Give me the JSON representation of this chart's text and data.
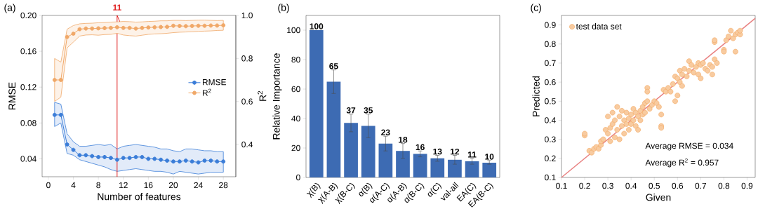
{
  "chart_data": [
    {
      "type": "line",
      "title": "(a)",
      "xlabel": "Number of features",
      "ylabel": "RMSE",
      "y2label": "R$^{2}$",
      "x": [
        1,
        2,
        3,
        4,
        5,
        6,
        7,
        8,
        9,
        10,
        11,
        12,
        13,
        14,
        15,
        16,
        17,
        18,
        19,
        20,
        21,
        22,
        23,
        24,
        25,
        26,
        27,
        28
      ],
      "xlim": [
        -1,
        30
      ],
      "xticks": [
        0,
        4,
        8,
        12,
        16,
        20,
        24,
        28
      ],
      "ylim": [
        0.02,
        0.2
      ],
      "yticks": [
        0.04,
        0.08,
        0.12,
        0.16,
        {
          "value": 0.2,
          "label": "0.20"
        }
      ],
      "y2lim": [
        0.25,
        1.0
      ],
      "y2ticks": [
        0.4,
        0.6,
        0.8,
        {
          "value": 1.0,
          "label": "1.0"
        }
      ],
      "marker": "circle",
      "legend": "right",
      "ref_lines": [
        {
          "axis": "x",
          "value": 11,
          "label": "11",
          "color": "#e02020"
        }
      ],
      "series": [
        {
          "name": "RMSE",
          "color": "#3b7dd8",
          "values": [
            0.089,
            0.089,
            0.056,
            0.05,
            0.044,
            0.044,
            0.043,
            0.042,
            0.042,
            0.041,
            0.039,
            0.041,
            0.041,
            0.042,
            0.042,
            0.04,
            0.04,
            0.039,
            0.038,
            0.037,
            0.037,
            0.038,
            0.037,
            0.036,
            0.038,
            0.038,
            0.037,
            0.037
          ],
          "lower": [
            0.076,
            0.08,
            0.046,
            0.044,
            0.039,
            0.037,
            0.035,
            0.033,
            0.031,
            0.028,
            0.026,
            0.027,
            0.028,
            0.029,
            0.028,
            0.027,
            0.026,
            0.026,
            0.025,
            0.023,
            0.026,
            0.025,
            0.024,
            0.023,
            0.024,
            0.025,
            0.025,
            0.025
          ],
          "upper": [
            0.103,
            0.101,
            0.068,
            0.059,
            0.054,
            0.054,
            0.055,
            0.056,
            0.055,
            0.056,
            0.051,
            0.054,
            0.055,
            0.056,
            0.055,
            0.054,
            0.053,
            0.051,
            0.051,
            0.049,
            0.048,
            0.051,
            0.051,
            0.05,
            0.049,
            0.049,
            0.048,
            0.048
          ]
        },
        {
          "name": "R$^{2}$",
          "color": "#f0a868",
          "axis": "y2",
          "values": [
            0.7,
            0.7,
            0.9,
            0.915,
            0.936,
            0.939,
            0.939,
            0.94,
            0.941,
            0.942,
            0.945,
            0.942,
            0.942,
            0.939,
            0.942,
            0.944,
            0.945,
            0.946,
            0.947,
            0.952,
            0.951,
            0.95,
            0.951,
            0.952,
            0.952,
            0.953,
            0.953,
            0.954
          ],
          "lower": [
            0.6,
            0.62,
            0.849,
            0.876,
            0.904,
            0.909,
            0.91,
            0.908,
            0.911,
            0.912,
            0.917,
            0.909,
            0.906,
            0.904,
            0.908,
            0.912,
            0.914,
            0.915,
            0.917,
            0.92,
            0.922,
            0.923,
            0.924,
            0.926,
            0.927,
            0.928,
            0.93,
            0.931
          ],
          "upper": [
            0.8,
            0.783,
            0.936,
            0.953,
            0.961,
            0.963,
            0.964,
            0.966,
            0.967,
            0.969,
            0.97,
            0.972,
            0.971,
            0.969,
            0.97,
            0.972,
            0.973,
            0.975,
            0.975,
            0.977,
            0.977,
            0.976,
            0.977,
            0.978,
            0.978,
            0.977,
            0.976,
            0.977
          ]
        }
      ]
    },
    {
      "type": "bar",
      "title": "(b)",
      "ylabel": "Relative Importance",
      "categories": [
        "χ(B)",
        "χ(A-B)",
        "χ(B-C)",
        "α(B)",
        "α(A-C)",
        "α(A-B)",
        "α(B-C)",
        "α(C)",
        "val-all",
        "EA(C)",
        "EA(B-C)"
      ],
      "values": [
        100,
        65,
        37,
        35,
        23,
        18,
        16,
        13,
        12,
        11,
        10
      ],
      "color": "#3d6bb3",
      "errors": [
        null,
        [
          57,
          73
        ],
        [
          31,
          43
        ],
        [
          27,
          43
        ],
        [
          18,
          28
        ],
        [
          13,
          23
        ],
        [
          14,
          18
        ],
        [
          11,
          15
        ],
        [
          9,
          15
        ],
        [
          9,
          13
        ],
        [
          9,
          11.5
        ]
      ],
      "data_labels": true,
      "ylim": [
        0,
        110
      ],
      "yticks": [
        0,
        20,
        40,
        60,
        80,
        100
      ]
    },
    {
      "type": "scatter",
      "title": "(c)",
      "xlabel": "Given",
      "ylabel": "Predicted",
      "xlim": [
        0.1,
        0.935
      ],
      "ylim": [
        0.1,
        0.95
      ],
      "xticks": [
        0.1,
        0.2,
        0.3,
        0.4,
        0.5,
        0.6,
        0.7,
        0.8,
        0.9
      ],
      "yticks": [
        0.1,
        0.2,
        0.3,
        0.4,
        0.5,
        0.6,
        0.7,
        0.8,
        0.9
      ],
      "legend": "top left",
      "annotations": [
        "Average RMSE = 0.034",
        "Average     R$^{2}$    = 0.957"
      ],
      "series": [
        {
          "name": "test data set",
          "color": "#f4a860",
          "marker": "circle",
          "x": [
            0.2,
            0.2,
            0.22,
            0.23,
            0.24,
            0.25,
            0.26,
            0.27,
            0.27,
            0.28,
            0.29,
            0.3,
            0.3,
            0.31,
            0.31,
            0.32,
            0.32,
            0.33,
            0.33,
            0.34,
            0.34,
            0.35,
            0.35,
            0.36,
            0.36,
            0.37,
            0.37,
            0.38,
            0.38,
            0.39,
            0.39,
            0.4,
            0.4,
            0.41,
            0.41,
            0.42,
            0.42,
            0.43,
            0.43,
            0.44,
            0.44,
            0.45,
            0.45,
            0.46,
            0.46,
            0.47,
            0.47,
            0.47,
            0.48,
            0.49,
            0.5,
            0.51,
            0.52,
            0.53,
            0.53,
            0.53,
            0.54,
            0.55,
            0.56,
            0.57,
            0.58,
            0.59,
            0.59,
            0.6,
            0.6,
            0.61,
            0.61,
            0.62,
            0.62,
            0.63,
            0.64,
            0.65,
            0.65,
            0.66,
            0.67,
            0.68,
            0.69,
            0.69,
            0.7,
            0.7,
            0.71,
            0.72,
            0.73,
            0.74,
            0.75,
            0.75,
            0.76,
            0.76,
            0.76,
            0.77,
            0.8,
            0.8,
            0.81,
            0.82,
            0.83,
            0.84,
            0.85,
            0.85,
            0.86,
            0.87,
            0.87
          ],
          "values": [
            0.32,
            0.33,
            0.24,
            0.23,
            0.25,
            0.26,
            0.25,
            0.27,
            0.29,
            0.3,
            0.35,
            0.42,
            0.33,
            0.36,
            0.29,
            0.38,
            0.44,
            0.4,
            0.31,
            0.47,
            0.35,
            0.3,
            0.42,
            0.45,
            0.37,
            0.33,
            0.4,
            0.44,
            0.38,
            0.41,
            0.35,
            0.43,
            0.38,
            0.46,
            0.4,
            0.37,
            0.44,
            0.35,
            0.42,
            0.45,
            0.4,
            0.47,
            0.43,
            0.49,
            0.44,
            0.57,
            0.55,
            0.5,
            0.46,
            0.48,
            0.5,
            0.49,
            0.47,
            0.43,
            0.37,
            0.36,
            0.56,
            0.55,
            0.57,
            0.55,
            0.59,
            0.5,
            0.63,
            0.62,
            0.53,
            0.66,
            0.6,
            0.64,
            0.58,
            0.67,
            0.63,
            0.71,
            0.66,
            0.69,
            0.65,
            0.68,
            0.64,
            0.7,
            0.62,
            0.69,
            0.7,
            0.67,
            0.66,
            0.69,
            0.64,
            0.68,
            0.72,
            0.81,
            0.82,
            0.7,
            0.77,
            0.76,
            0.82,
            0.84,
            0.87,
            0.83,
            0.76,
            0.85,
            0.86,
            0.85,
            0.87
          ]
        },
        {
          "type": "line",
          "color": "#e88080",
          "marker": "none",
          "x": [
            0.1,
            0.935
          ],
          "values": [
            0.1,
            0.935
          ]
        }
      ]
    }
  ]
}
